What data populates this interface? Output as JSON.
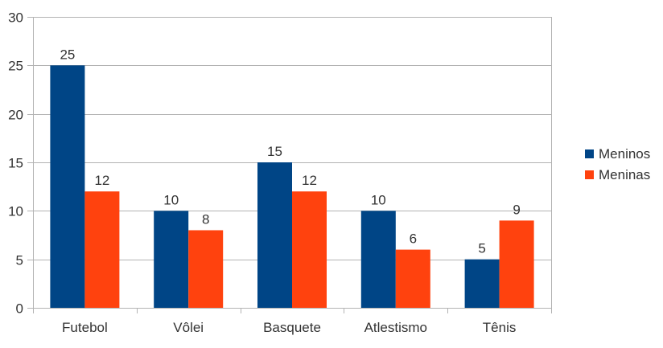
{
  "chart_data": {
    "type": "bar",
    "categories": [
      "Futebol",
      "Vôlei",
      "Basquete",
      "Atlestismo",
      "Tênis"
    ],
    "series": [
      {
        "name": "Meninos",
        "values": [
          25,
          10,
          15,
          10,
          5
        ],
        "color": "#004586"
      },
      {
        "name": "Meninas",
        "values": [
          12,
          8,
          12,
          6,
          9
        ],
        "color": "#ff420e"
      }
    ],
    "ylim": [
      0,
      30
    ],
    "yticks": [
      0,
      5,
      10,
      15,
      20,
      25,
      30
    ],
    "grid": true,
    "legend": "right",
    "data_labels": true,
    "gridline_color": "#b3b3b3"
  }
}
